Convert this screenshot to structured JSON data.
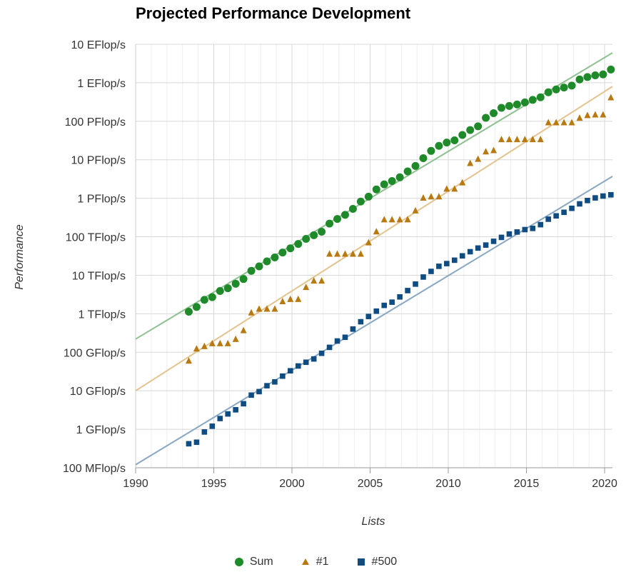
{
  "chart_data": {
    "type": "scatter",
    "title": "Projected Performance Development",
    "xlabel": "Lists",
    "ylabel": "Performance",
    "y_scale": "log",
    "xlim": [
      1990,
      2020.5
    ],
    "ylim_flops": [
      100000000.0,
      1e+19
    ],
    "x_ticks": [
      "1990",
      "1995",
      "2000",
      "2005",
      "2010",
      "2015",
      "2020"
    ],
    "y_ticks": [
      "10 EFlop/s",
      "1 EFlop/s",
      "100 PFlop/s",
      "10 PFlop/s",
      "1 PFlop/s",
      "100 TFlop/s",
      "10 TFlop/s",
      "1 TFlop/s",
      "100 GFlop/s",
      "10 GFlop/s",
      "1 GFlop/s",
      "100 MFlop/s"
    ],
    "grid": true,
    "legend_position": "bottom",
    "series": [
      {
        "name": "Sum",
        "marker": "circle",
        "color": "#1e8a2a",
        "trend_color": "#8fc08f",
        "trend": [
          [
            1990,
            220000000000.0
          ],
          [
            2020.5,
            6e+18
          ]
        ],
        "points": [
          [
            1993.4,
            1130000000000.0
          ],
          [
            1993.9,
            1500000000000.0
          ],
          [
            1994.4,
            2300000000000.0
          ],
          [
            1994.9,
            2700000000000.0
          ],
          [
            1995.4,
            3900000000000.0
          ],
          [
            1995.9,
            4600000000000.0
          ],
          [
            1996.4,
            6000000000000.0
          ],
          [
            1996.9,
            8000000000000.0
          ],
          [
            1997.4,
            13000000000000.0
          ],
          [
            1997.9,
            17000000000000.0
          ],
          [
            1998.4,
            23000000000000.0
          ],
          [
            1998.9,
            29000000000000.0
          ],
          [
            1999.4,
            39000000000000.0
          ],
          [
            1999.9,
            50000000000000.0
          ],
          [
            2000.4,
            65000000000000.0
          ],
          [
            2000.9,
            88000000000000.0
          ],
          [
            2001.4,
            110000000000000.0
          ],
          [
            2001.9,
            135000000000000.0
          ],
          [
            2002.4,
            220000000000000.0
          ],
          [
            2002.9,
            290000000000000.0
          ],
          [
            2003.4,
            370000000000000.0
          ],
          [
            2003.9,
            530000000000000.0
          ],
          [
            2004.4,
            820000000000000.0
          ],
          [
            2004.9,
            1100000000000000.0
          ],
          [
            2005.4,
            1700000000000000.0
          ],
          [
            2005.9,
            2300000000000000.0
          ],
          [
            2006.4,
            2800000000000000.0
          ],
          [
            2006.9,
            3500000000000000.0
          ],
          [
            2007.4,
            5000000000000000.0
          ],
          [
            2007.9,
            6900000000000000.0
          ],
          [
            2008.4,
            1.1e+16
          ],
          [
            2008.9,
            1.7e+16
          ],
          [
            2009.4,
            2.3e+16
          ],
          [
            2009.9,
            2.8e+16
          ],
          [
            2010.4,
            3.2e+16
          ],
          [
            2010.9,
            4.4e+16
          ],
          [
            2011.4,
            5.9e+16
          ],
          [
            2011.9,
            7.4e+16
          ],
          [
            2012.4,
            1.23e+17
          ],
          [
            2012.9,
            1.62e+17
          ],
          [
            2013.4,
            2.23e+17
          ],
          [
            2013.9,
            2.5e+17
          ],
          [
            2014.4,
            2.74e+17
          ],
          [
            2014.9,
            3.09e+17
          ],
          [
            2015.4,
            3.6e+17
          ],
          [
            2015.9,
            4.2e+17
          ],
          [
            2016.4,
            5.67e+17
          ],
          [
            2016.9,
            6.72e+17
          ],
          [
            2017.4,
            7.5e+17
          ],
          [
            2017.9,
            8.45e+17
          ],
          [
            2018.4,
            1.22e+18
          ],
          [
            2018.9,
            1.41e+18
          ],
          [
            2019.4,
            1.56e+18
          ],
          [
            2019.9,
            1.65e+18
          ],
          [
            2020.4,
            2.21e+18
          ]
        ]
      },
      {
        "name": "#1",
        "marker": "triangle",
        "color": "#b87a10",
        "trend_color": "#e3c38e",
        "trend": [
          [
            1990,
            10000000000.0
          ],
          [
            2020.5,
            8e+17
          ]
        ],
        "points": [
          [
            1993.4,
            60000000000.0
          ],
          [
            1993.9,
            124000000000.0
          ],
          [
            1994.4,
            143000000000.0
          ],
          [
            1994.9,
            170000000000.0
          ],
          [
            1995.4,
            170000000000.0
          ],
          [
            1995.9,
            170000000000.0
          ],
          [
            1996.4,
            220000000000.0
          ],
          [
            1996.9,
            370000000000.0
          ],
          [
            1997.4,
            1070000000000.0
          ],
          [
            1997.9,
            1340000000000.0
          ],
          [
            1998.4,
            1340000000000.0
          ],
          [
            1998.9,
            1340000000000.0
          ],
          [
            1999.4,
            2100000000000.0
          ],
          [
            1999.9,
            2400000000000.0
          ],
          [
            2000.4,
            2400000000000.0
          ],
          [
            2000.9,
            4900000000000.0
          ],
          [
            2001.4,
            7200000000000.0
          ],
          [
            2001.9,
            7200000000000.0
          ],
          [
            2002.4,
            35900000000000.0
          ],
          [
            2002.9,
            35900000000000.0
          ],
          [
            2003.4,
            35900000000000.0
          ],
          [
            2003.9,
            35900000000000.0
          ],
          [
            2004.4,
            35900000000000.0
          ],
          [
            2004.9,
            70700000000000.0
          ],
          [
            2005.4,
            136700000000000.0
          ],
          [
            2005.9,
            280600000000000.0
          ],
          [
            2006.4,
            280600000000000.0
          ],
          [
            2006.9,
            280600000000000.0
          ],
          [
            2007.4,
            280600000000000.0
          ],
          [
            2007.9,
            478200000000000.0
          ],
          [
            2008.4,
            1026000000000000.0
          ],
          [
            2008.9,
            1105000000000000.0
          ],
          [
            2009.4,
            1105000000000000.0
          ],
          [
            2009.9,
            1759000000000000.0
          ],
          [
            2010.4,
            1759000000000000.0
          ],
          [
            2010.9,
            2566000000000000.0
          ],
          [
            2011.4,
            8160000000000000.0
          ],
          [
            2011.9,
            1.051e+16
          ],
          [
            2012.4,
            1.632e+16
          ],
          [
            2012.9,
            1.759e+16
          ],
          [
            2013.4,
            3.386e+16
          ],
          [
            2013.9,
            3.386e+16
          ],
          [
            2014.4,
            3.386e+16
          ],
          [
            2014.9,
            3.386e+16
          ],
          [
            2015.4,
            3.386e+16
          ],
          [
            2015.9,
            3.386e+16
          ],
          [
            2016.4,
            9.3e+16
          ],
          [
            2016.9,
            9.3e+16
          ],
          [
            2017.4,
            9.3e+16
          ],
          [
            2017.9,
            9.3e+16
          ],
          [
            2018.4,
            1.225e+17
          ],
          [
            2018.9,
            1.435e+17
          ],
          [
            2019.4,
            1.486e+17
          ],
          [
            2019.9,
            1.486e+17
          ],
          [
            2020.4,
            4.155e+17
          ]
        ]
      },
      {
        "name": "#500",
        "marker": "square",
        "color": "#0f4c81",
        "trend_color": "#8aa7c2",
        "trend": [
          [
            1990,
            120000000.0
          ],
          [
            2020.5,
            3700000000000000.0
          ]
        ],
        "points": [
          [
            1993.4,
            420000000.0
          ],
          [
            1993.9,
            460000000.0
          ],
          [
            1994.4,
            850000000.0
          ],
          [
            1994.9,
            1200000000.0
          ],
          [
            1995.4,
            1900000000.0
          ],
          [
            1995.9,
            2500000000.0
          ],
          [
            1996.4,
            3200000000.0
          ],
          [
            1996.9,
            4600000000.0
          ],
          [
            1997.4,
            7700000000.0
          ],
          [
            1997.9,
            9500000000.0
          ],
          [
            1998.4,
            13500000000.0
          ],
          [
            1998.9,
            17000000000.0
          ],
          [
            1999.4,
            24000000000.0
          ],
          [
            1999.9,
            33000000000.0
          ],
          [
            2000.4,
            44000000000.0
          ],
          [
            2000.9,
            55000000000.0
          ],
          [
            2001.4,
            67000000000.0
          ],
          [
            2001.9,
            94000000000.0
          ],
          [
            2002.4,
            134000000000.0
          ],
          [
            2002.9,
            196000000000.0
          ],
          [
            2003.4,
            245000000000.0
          ],
          [
            2003.9,
            400000000000.0
          ],
          [
            2004.4,
            620000000000.0
          ],
          [
            2004.9,
            850000000000.0
          ],
          [
            2005.4,
            1170000000000.0
          ],
          [
            2005.9,
            1650000000000.0
          ],
          [
            2006.4,
            2000000000000.0
          ],
          [
            2006.9,
            2740000000000.0
          ],
          [
            2007.4,
            4000000000000.0
          ],
          [
            2007.9,
            5900000000000.0
          ],
          [
            2008.4,
            9000000000000.0
          ],
          [
            2008.9,
            12600000000000.0
          ],
          [
            2009.4,
            17100000000000.0
          ],
          [
            2009.9,
            20100000000000.0
          ],
          [
            2010.4,
            24600000000000.0
          ],
          [
            2010.9,
            31900000000000.0
          ],
          [
            2011.4,
            40900000000000.0
          ],
          [
            2011.9,
            50900000000000.0
          ],
          [
            2012.4,
            60900000000000.0
          ],
          [
            2012.9,
            76200000000000.0
          ],
          [
            2013.4,
            96400000000000.0
          ],
          [
            2013.9,
            117900000000000.0
          ],
          [
            2014.4,
            133000000000000.0
          ],
          [
            2014.9,
            153500000000000.0
          ],
          [
            2015.4,
            164800000000000.0
          ],
          [
            2015.9,
            206300000000000.0
          ],
          [
            2016.4,
            286100000000000.0
          ],
          [
            2016.9,
            349000000000000.0
          ],
          [
            2017.4,
            432000000000000.0
          ],
          [
            2017.9,
            548000000000000.0
          ],
          [
            2018.4,
            715000000000000.0
          ],
          [
            2018.9,
            874000000000000.0
          ],
          [
            2019.4,
            1022000000000000.0
          ],
          [
            2019.9,
            1142000000000000.0
          ],
          [
            2020.4,
            1230000000000000.0
          ]
        ]
      }
    ]
  }
}
